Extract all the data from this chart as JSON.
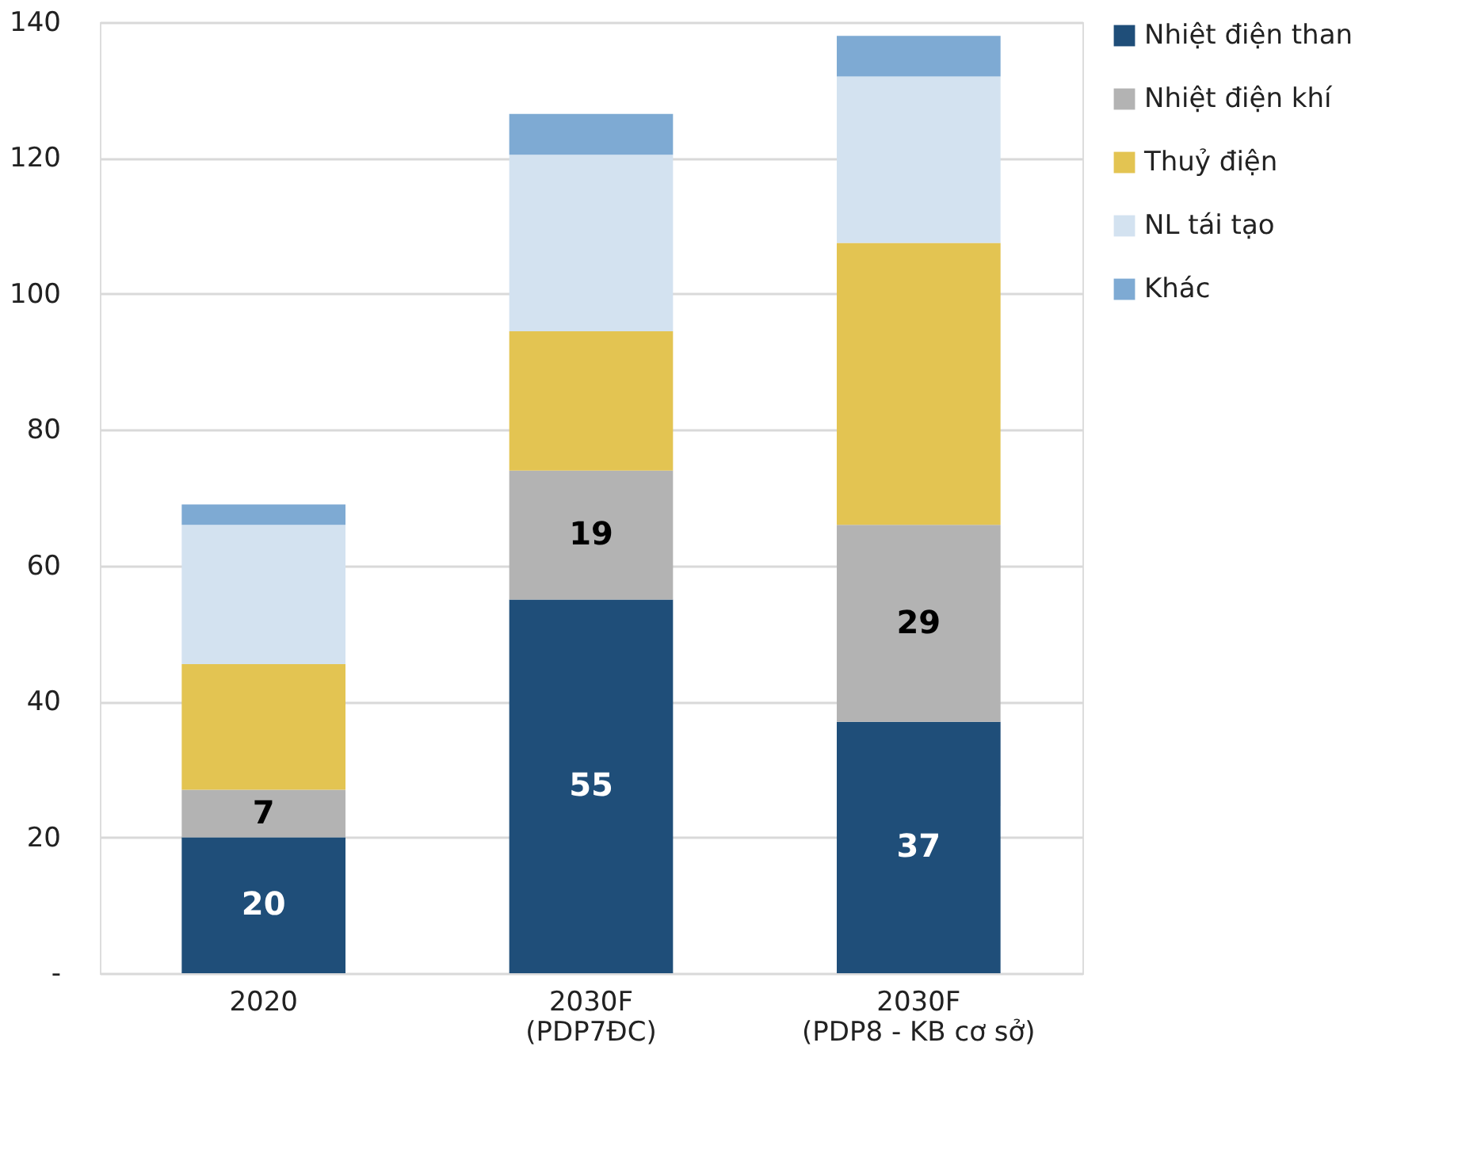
{
  "chart_data": {
    "type": "bar",
    "stacked": true,
    "categories": [
      "2020",
      "2030F\n(PDP7ĐC)",
      "2030F\n(PDP8 - KB cơ sở)"
    ],
    "series": [
      {
        "name": "Nhiệt điện than",
        "color": "#1f4e79",
        "values": [
          20,
          55,
          37
        ],
        "value_labels": [
          "20",
          "55",
          "37"
        ]
      },
      {
        "name": "Nhiệt điện khí",
        "color": "#b3b3b3",
        "values": [
          7,
          19,
          29
        ],
        "value_labels": [
          "7",
          "19",
          "29"
        ]
      },
      {
        "name": "Thuỷ điện",
        "color": "#e3c452",
        "values": [
          18.5,
          20.5,
          41.5
        ]
      },
      {
        "name": "NL tái tạo",
        "color": "#d3e2f0",
        "values": [
          20.5,
          26,
          24.5
        ]
      },
      {
        "name": "Khác",
        "color": "#7eaad3",
        "values": [
          3,
          6,
          6
        ]
      }
    ],
    "ylim": [
      0,
      140
    ],
    "yticks": [
      {
        "value": 0,
        "label": "-"
      },
      20,
      40,
      60,
      80,
      100,
      120,
      140
    ],
    "grid": "y",
    "legend": "right"
  }
}
